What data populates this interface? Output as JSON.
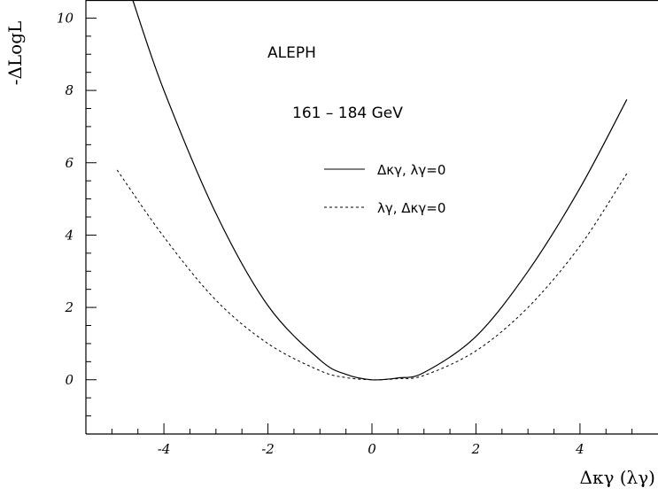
{
  "chart_data": {
    "type": "line",
    "title": "",
    "xlabel": "Δκγ  (λγ)",
    "ylabel": "-ΔLogL",
    "xlim": [
      -5.5,
      5.5
    ],
    "ylim": [
      -1.5,
      10.5
    ],
    "x_ticks": [
      -4,
      -2,
      0,
      2,
      4
    ],
    "x_tick_labels": [
      "-4",
      "-2",
      "0",
      "2",
      "4"
    ],
    "y_ticks": [
      0,
      2,
      4,
      6,
      8,
      10
    ],
    "y_tick_labels": [
      "0",
      "2",
      "4",
      "6",
      "8",
      "10"
    ],
    "grid": false,
    "legend_position": "right",
    "annotations": [
      "ALEPH",
      "161 – 184 GeV"
    ],
    "series": [
      {
        "name": "Δκγ, λγ=0",
        "style": "solid",
        "color": "#000000",
        "x": [
          -4.6,
          -4.0,
          -3.0,
          -2.0,
          -1.0,
          -0.5,
          0.0,
          0.5,
          1.0,
          2.0,
          3.0,
          4.0,
          4.9
        ],
        "y": [
          10.5,
          8.0,
          4.6,
          2.05,
          0.55,
          0.15,
          0.0,
          0.05,
          0.2,
          1.2,
          3.0,
          5.3,
          7.75
        ]
      },
      {
        "name": "λγ, Δκγ=0",
        "style": "dashed",
        "color": "#000000",
        "x": [
          -4.9,
          -4.0,
          -3.0,
          -2.0,
          -1.0,
          -0.5,
          0.0,
          0.5,
          1.0,
          2.0,
          3.0,
          4.0,
          4.9
        ],
        "y": [
          5.8,
          3.95,
          2.2,
          1.0,
          0.25,
          0.06,
          0.0,
          0.03,
          0.12,
          0.8,
          2.0,
          3.7,
          5.7
        ]
      }
    ]
  }
}
